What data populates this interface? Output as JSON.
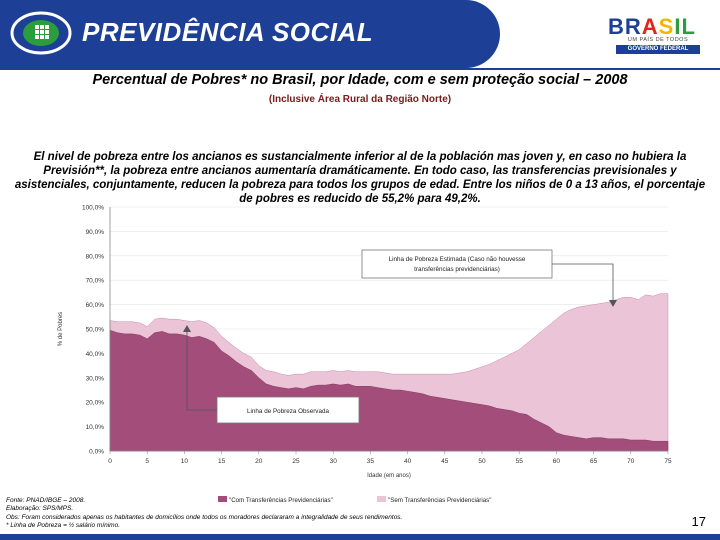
{
  "header": {
    "title": "PREVIDÊNCIA SOCIAL",
    "brasil_word": [
      "BR",
      "A",
      "S",
      "IL"
    ],
    "brasil_tagline": "UM PAÍS DE TODOS",
    "brasil_gov": "GOVERNO FEDERAL"
  },
  "slide": {
    "title": "Percentual de Pobres* no Brasil, por Idade, com e sem proteção social – 2008",
    "subtitle": "(Inclusive Área Rural da Região Norte)",
    "summary": "El nivel de pobreza entre los ancianos es sustancialmente inferior al de la población mas joven y, en caso no hubiera la Previsión**, la pobreza entre ancianos aumentaría dramáticamente. En todo caso, las transferencias previsionales y asistenciales, conjuntamente, reducen la pobreza para todos los grupos de edad. Entre los niños de 0 a 13 años, el porcentaje de pobres es reducido de 55,2% para 49,2%.",
    "page_number": "17"
  },
  "footnotes": [
    "Fonte: PNAD/IBGE – 2008.",
    "Elaboração: SPS/MPS.",
    "Obs: Foram considerados apenas os habitantes de domicílios onde todos os moradores declararam a integralidade de seus rendimentos.",
    "* Linha de Pobreza = ½ salário mínimo."
  ],
  "chart_data": {
    "type": "area",
    "xlabel": "Idade (em anos)",
    "ylabel": "% de Pobres",
    "xlim": [
      0,
      75
    ],
    "ylim": [
      0,
      100
    ],
    "x_ticks": [
      0,
      5,
      10,
      15,
      20,
      25,
      30,
      35,
      40,
      45,
      50,
      55,
      60,
      65,
      70,
      75
    ],
    "y_ticks": [
      "0,0%",
      "10,0%",
      "20,0%",
      "30,0%",
      "40,0%",
      "50,0%",
      "60,0%",
      "70,0%",
      "80,0%",
      "90,0%",
      "100,0%"
    ],
    "colors": {
      "com": "#a24d7a",
      "sem": "#ebc4d8"
    },
    "x": [
      0,
      1,
      2,
      3,
      4,
      5,
      6,
      7,
      8,
      9,
      10,
      11,
      12,
      13,
      14,
      15,
      16,
      17,
      18,
      19,
      20,
      21,
      22,
      23,
      24,
      25,
      26,
      27,
      28,
      29,
      30,
      31,
      32,
      33,
      34,
      35,
      36,
      37,
      38,
      39,
      40,
      41,
      42,
      43,
      44,
      45,
      46,
      47,
      48,
      49,
      50,
      51,
      52,
      53,
      54,
      55,
      56,
      57,
      58,
      59,
      60,
      61,
      62,
      63,
      64,
      65,
      66,
      67,
      68,
      69,
      70,
      71,
      72,
      73,
      74,
      75
    ],
    "series": [
      {
        "name": "\"Com Transferências Previdenciárias\"",
        "values": [
          49.5,
          48.5,
          48,
          48,
          47.5,
          46,
          48.5,
          49,
          48,
          48,
          47.5,
          46.5,
          47,
          46,
          44.5,
          41,
          39,
          36.5,
          34.5,
          33,
          30,
          27.5,
          26.5,
          26,
          25.5,
          26,
          25.5,
          26.5,
          27,
          27,
          27.5,
          27,
          27.5,
          26.5,
          26.5,
          26.5,
          26,
          25.5,
          25,
          25,
          24.5,
          24,
          23.5,
          22.5,
          22,
          21.5,
          21,
          20.5,
          20,
          19.5,
          19,
          18.5,
          17.5,
          17,
          16.5,
          15.5,
          15,
          13,
          11.5,
          10,
          7.5,
          6.5,
          6,
          5.5,
          5,
          5.5,
          5.5,
          5,
          5,
          5,
          4.5,
          4.5,
          4.5,
          4,
          4,
          4
        ]
      },
      {
        "name": "\"Sem Transferências Previdenciárias\"",
        "values": [
          53.5,
          53,
          53,
          53,
          52.5,
          51,
          54,
          54.5,
          54,
          54,
          53.5,
          53,
          53.5,
          52.5,
          50.5,
          47,
          44.5,
          42,
          40,
          38.5,
          35,
          33,
          32.5,
          31.5,
          31,
          31.5,
          31.5,
          32.5,
          32.5,
          32.5,
          33,
          32.5,
          33,
          32.5,
          32.5,
          32.5,
          32.5,
          32,
          31.5,
          31.5,
          31.5,
          31.5,
          31.5,
          31.5,
          31.5,
          31.5,
          31.5,
          32,
          32.5,
          33.5,
          34.5,
          35.5,
          37,
          38.5,
          40,
          41.5,
          44,
          46.5,
          49,
          51.5,
          54,
          56.5,
          58,
          59,
          59.5,
          60,
          60.5,
          61,
          62,
          63,
          63,
          62,
          64,
          63.5,
          64.5,
          64.5
        ]
      }
    ],
    "annotations": [
      "Linha de Pobreza Estimada (Caso não houvesse transferências previdenciárias)",
      "Linha de Pobreza Observada"
    ]
  }
}
